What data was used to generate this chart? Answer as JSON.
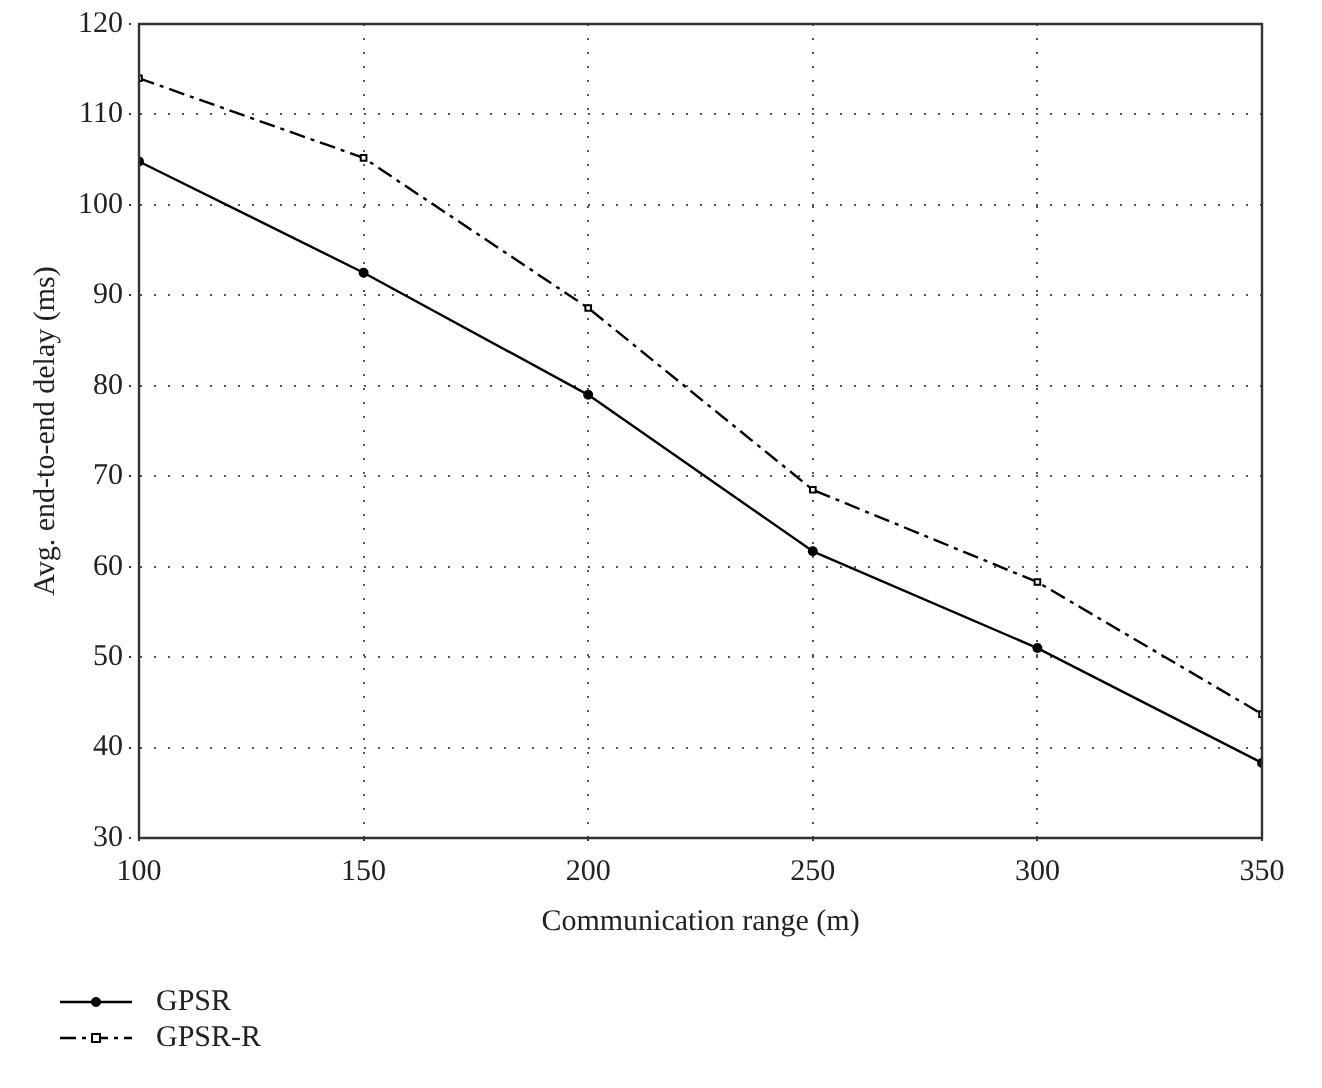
{
  "chart_data": {
    "type": "line",
    "xlabel": "Communication range (m)",
    "ylabel": "Avg. end-to-end delay (ms)",
    "x": [
      100,
      150,
      200,
      250,
      300,
      350
    ],
    "series": [
      {
        "name": "GPSR",
        "color": "#000000",
        "values": [
          104.8,
          92.5,
          79,
          61.7,
          51,
          38.3
        ],
        "marker": "circle",
        "line_style": "solid"
      },
      {
        "name": "GPSR-R",
        "color": "#000000",
        "values": [
          114,
          105.2,
          88.6,
          68.5,
          58.3,
          43.7
        ],
        "marker": "square",
        "line_style": "dashdot"
      }
    ],
    "xlim": [
      100,
      350
    ],
    "xticks": [
      100,
      150,
      200,
      250,
      300,
      350
    ],
    "ylim": [
      30,
      120
    ],
    "yticks": [
      30,
      40,
      50,
      60,
      70,
      80,
      90,
      100,
      110,
      120
    ],
    "grid": true,
    "legend": "bottom left"
  }
}
